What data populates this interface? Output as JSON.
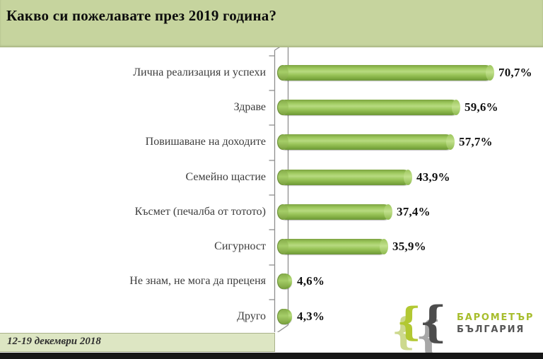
{
  "title": "Какво си пожелавате през 2019 година?",
  "footer": {
    "date_range": "12-19 декември  2018"
  },
  "logo": {
    "brand_line1": "БАРОМЕТЪР",
    "brand_line2": "БЪЛГАРИЯ",
    "face_glyph": "{"
  },
  "colors": {
    "header_bg": "#c6d49e",
    "footer_bg": "#dde6c3",
    "bar_main": "#93c04f",
    "bar_highlight": "#b7da80",
    "bar_shadow": "#6d9738",
    "axis_line": "#8f8f8f",
    "value_text": "#111111",
    "category_text": "#3c3c3c",
    "logo_green": "#aec432",
    "logo_gray": "#4d4d4d",
    "bottom_strip": "#161616"
  },
  "chart_data": {
    "type": "bar",
    "orientation": "horizontal",
    "title": "Какво си пожелавате през 2019 година?",
    "categories": [
      "Лична реализация и успехи",
      "Здраве",
      "Повишаване на доходите",
      "Семейно щастие",
      "Късмет (печалба от тотото)",
      "Сигурност",
      "Не знам, не мога да преценя",
      "Друго"
    ],
    "values": [
      70.7,
      59.6,
      57.7,
      43.9,
      37.4,
      35.9,
      4.6,
      4.3
    ],
    "value_labels": [
      "70,7%",
      "59,6%",
      "57,7%",
      "43,9%",
      "37,4%",
      "35,9%",
      "4,6%",
      "4,3%"
    ],
    "unit": "%",
    "xlim": [
      0,
      80
    ],
    "grid": false,
    "legend": false,
    "bar_color": "#93c04f",
    "survey_period": "12-19 декември 2018"
  }
}
